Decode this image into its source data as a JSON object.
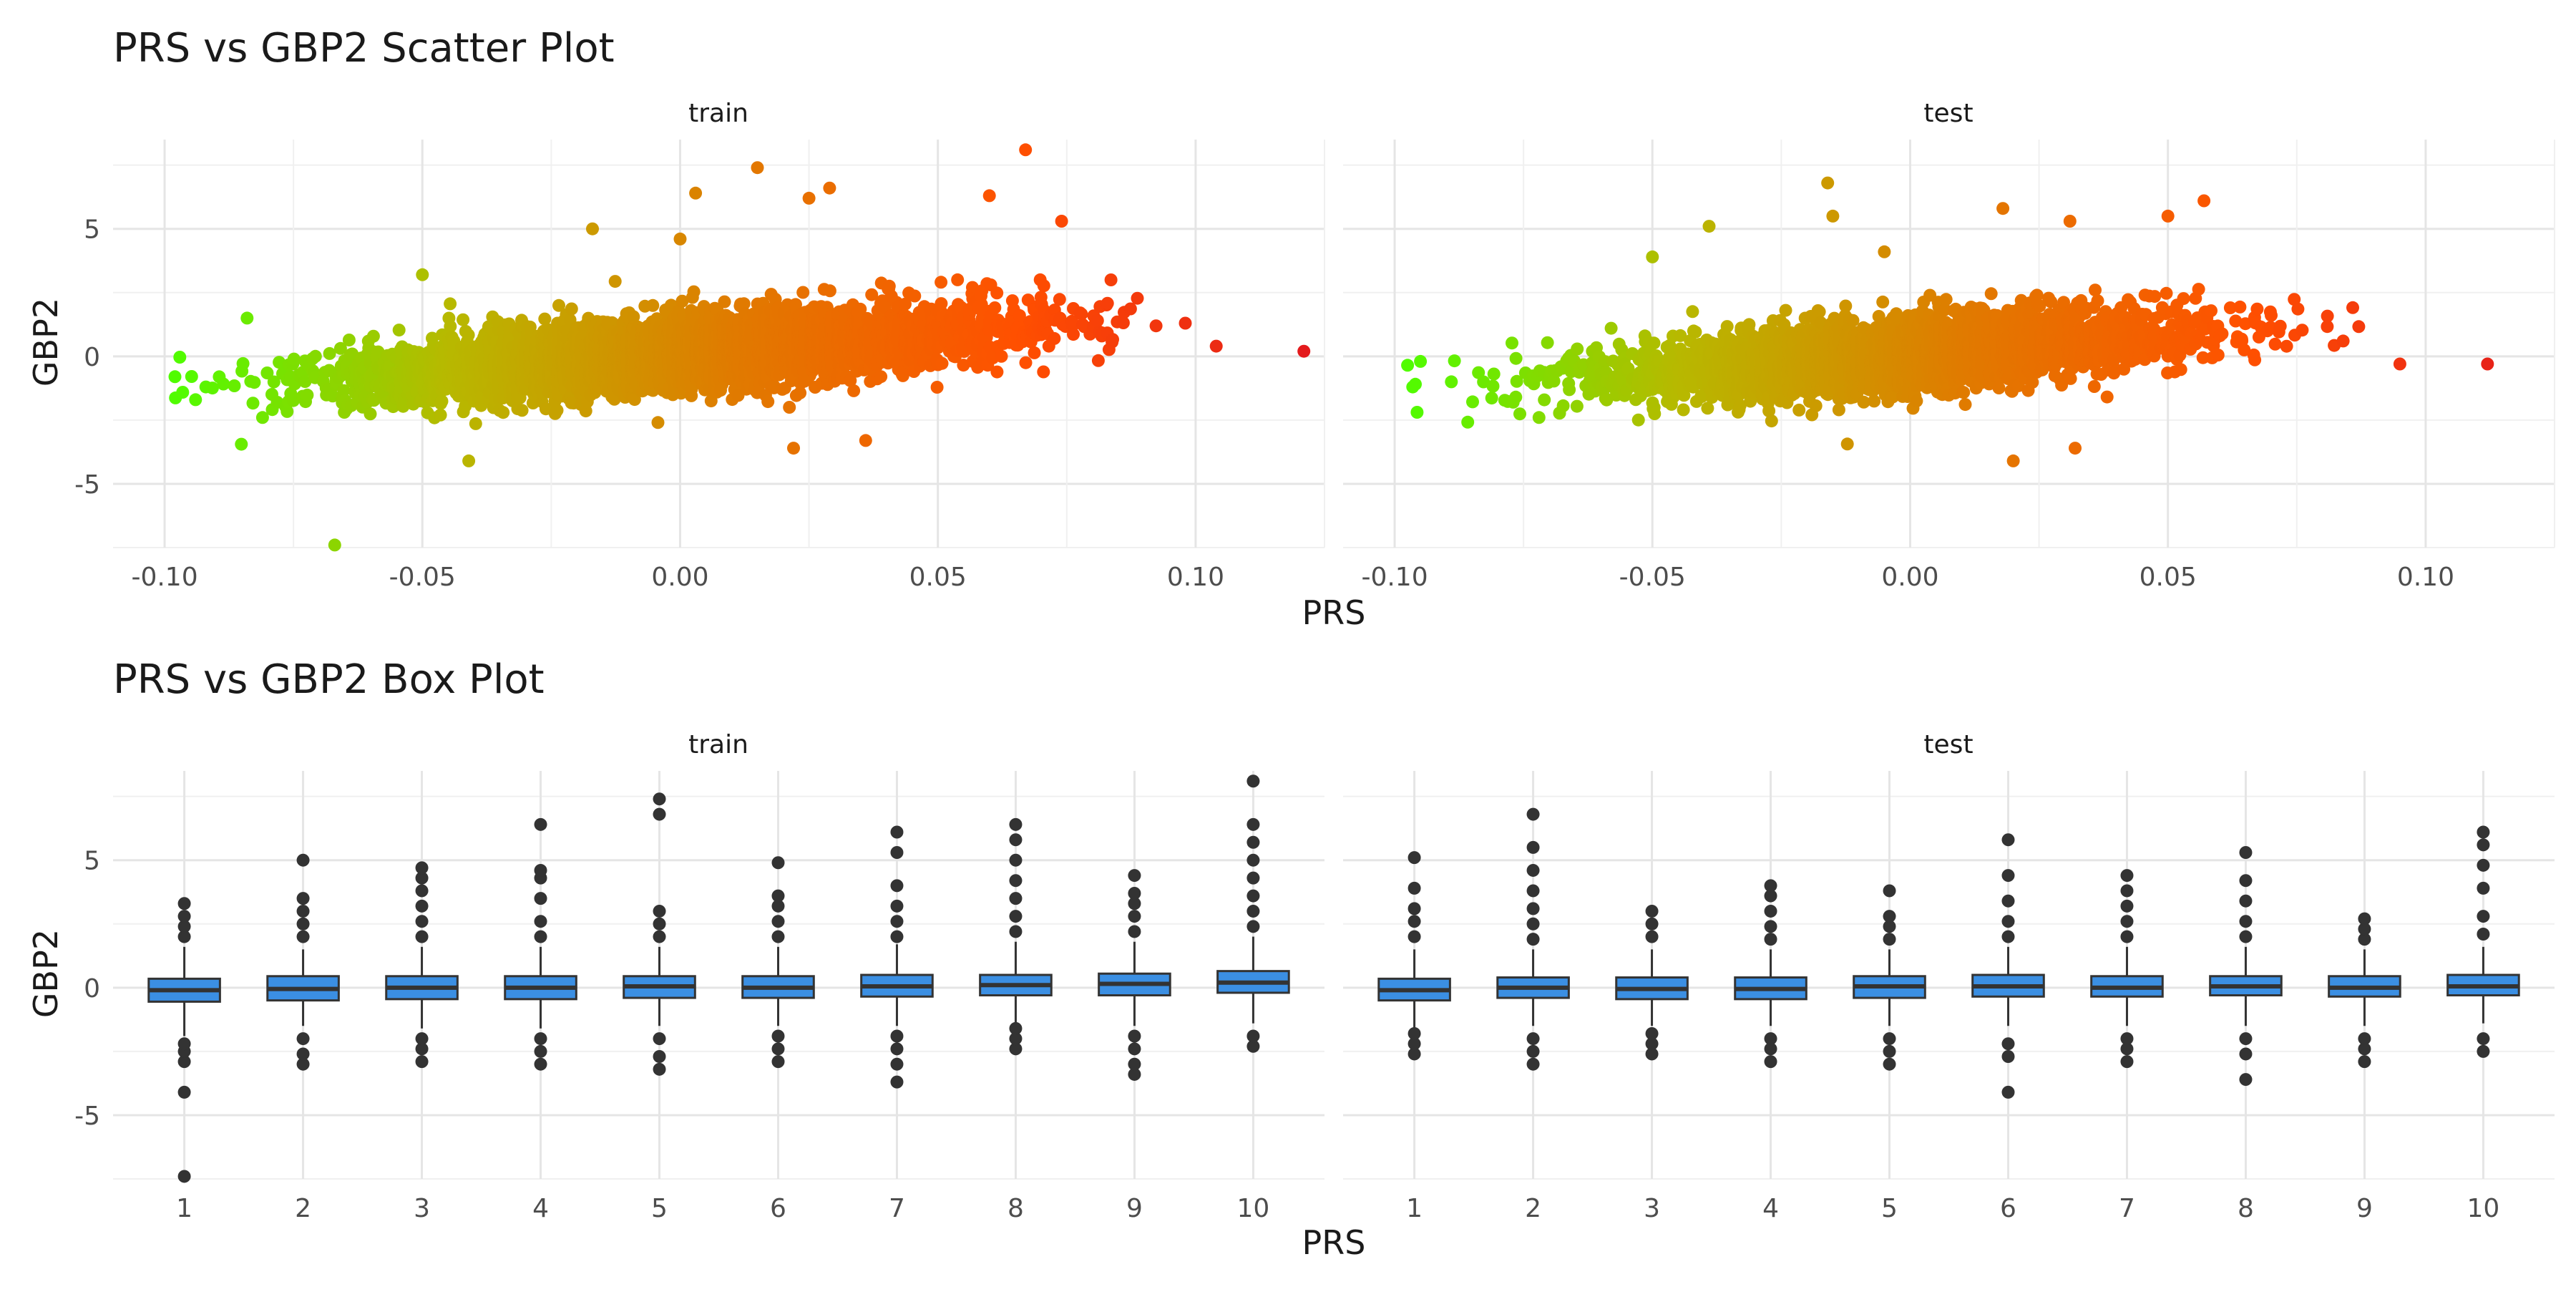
{
  "chart_data": [
    {
      "type": "scatter",
      "title": "PRS vs GBP2 Scatter Plot",
      "xlabel": "PRS",
      "ylabel": "GBP2",
      "facets": [
        "train",
        "test"
      ],
      "xlim": [
        -0.11,
        0.125
      ],
      "ylim": [
        -7.5,
        8.5
      ],
      "x_ticks": [
        "-0.10",
        "-0.05",
        "0.00",
        "0.05",
        "0.10"
      ],
      "x_tick_values": [
        -0.1,
        -0.05,
        0.0,
        0.05,
        0.1
      ],
      "y_ticks": [
        "-5",
        "0",
        "5"
      ],
      "y_tick_values": [
        -5,
        0,
        5
      ],
      "grid": true,
      "color_gradient": [
        "#4cff00",
        "#b7b900",
        "#e07b00",
        "#ff5000",
        "#e41a1c"
      ],
      "color_encodes": "PRS",
      "notable_points": {
        "train": [
          {
            "x": -0.098,
            "y": -0.8
          },
          {
            "x": -0.094,
            "y": -1.7
          },
          {
            "x": -0.084,
            "y": 1.5
          },
          {
            "x": -0.081,
            "y": -2.4
          },
          {
            "x": -0.067,
            "y": -7.4
          },
          {
            "x": -0.05,
            "y": 3.2
          },
          {
            "x": -0.041,
            "y": -4.1
          },
          {
            "x": -0.017,
            "y": 5.0
          },
          {
            "x": 0.0,
            "y": 4.6
          },
          {
            "x": 0.003,
            "y": 6.4
          },
          {
            "x": 0.015,
            "y": 7.4
          },
          {
            "x": 0.025,
            "y": 6.2
          },
          {
            "x": 0.029,
            "y": 6.6
          },
          {
            "x": 0.022,
            "y": -3.6
          },
          {
            "x": 0.036,
            "y": -3.3
          },
          {
            "x": 0.06,
            "y": 6.3
          },
          {
            "x": 0.067,
            "y": 8.1
          },
          {
            "x": 0.074,
            "y": 5.3
          },
          {
            "x": 0.098,
            "y": 1.3
          },
          {
            "x": 0.104,
            "y": 0.4
          },
          {
            "x": 0.121,
            "y": 0.2
          }
        ],
        "test": [
          {
            "x": -0.095,
            "y": -0.2
          },
          {
            "x": -0.089,
            "y": -1.0
          },
          {
            "x": -0.077,
            "y": -1.8
          },
          {
            "x": -0.072,
            "y": -2.4
          },
          {
            "x": -0.05,
            "y": 3.9
          },
          {
            "x": -0.039,
            "y": 5.1
          },
          {
            "x": -0.016,
            "y": 6.8
          },
          {
            "x": -0.015,
            "y": 5.5
          },
          {
            "x": -0.005,
            "y": 4.1
          },
          {
            "x": 0.018,
            "y": 5.8
          },
          {
            "x": 0.02,
            "y": -4.1
          },
          {
            "x": 0.031,
            "y": 5.3
          },
          {
            "x": 0.032,
            "y": -3.6
          },
          {
            "x": 0.05,
            "y": 5.5
          },
          {
            "x": 0.057,
            "y": 6.1
          },
          {
            "x": 0.084,
            "y": 0.6
          },
          {
            "x": 0.095,
            "y": -0.3
          },
          {
            "x": 0.112,
            "y": -0.3
          }
        ]
      }
    },
    {
      "type": "box",
      "title": "PRS vs GBP2 Box Plot",
      "xlabel": "PRS",
      "ylabel": "GBP2",
      "facets": [
        "train",
        "test"
      ],
      "categories": [
        "1",
        "2",
        "3",
        "4",
        "5",
        "6",
        "7",
        "8",
        "9",
        "10"
      ],
      "ylim": [
        -7.5,
        8.5
      ],
      "y_ticks": [
        "-5",
        "0",
        "5"
      ],
      "y_tick_values": [
        -5,
        0,
        5
      ],
      "grid": true,
      "box_fill": "#3b8fe3",
      "box_stroke": "#333333",
      "series": [
        {
          "facet": "train",
          "boxes": [
            {
              "q1": -0.55,
              "median": -0.1,
              "q3": 0.35,
              "whisker_low": -1.9,
              "whisker_high": 1.6,
              "outliers": [
                -7.4,
                -4.1,
                -2.9,
                -2.5,
                -2.2,
                2.0,
                2.4,
                2.8,
                3.3
              ]
            },
            {
              "q1": -0.5,
              "median": -0.05,
              "q3": 0.45,
              "whisker_low": -1.5,
              "whisker_high": 1.5,
              "outliers": [
                -3.0,
                -2.6,
                -2.0,
                2.0,
                2.5,
                3.0,
                3.5,
                5.0
              ]
            },
            {
              "q1": -0.45,
              "median": 0.0,
              "q3": 0.45,
              "whisker_low": -1.6,
              "whisker_high": 1.6,
              "outliers": [
                -2.9,
                -2.4,
                -2.0,
                2.0,
                2.6,
                3.2,
                3.8,
                4.3,
                4.7
              ]
            },
            {
              "q1": -0.45,
              "median": 0.0,
              "q3": 0.45,
              "whisker_low": -1.6,
              "whisker_high": 1.6,
              "outliers": [
                -3.0,
                -2.5,
                -2.0,
                2.0,
                2.6,
                3.5,
                4.3,
                4.6,
                6.4
              ]
            },
            {
              "q1": -0.4,
              "median": 0.05,
              "q3": 0.45,
              "whisker_low": -1.5,
              "whisker_high": 1.6,
              "outliers": [
                -3.2,
                -2.7,
                -2.0,
                2.0,
                2.5,
                3.0,
                6.8,
                7.4
              ]
            },
            {
              "q1": -0.4,
              "median": 0.0,
              "q3": 0.45,
              "whisker_low": -1.5,
              "whisker_high": 1.6,
              "outliers": [
                -2.9,
                -2.4,
                -1.9,
                2.0,
                2.6,
                3.2,
                3.6,
                4.9
              ]
            },
            {
              "q1": -0.35,
              "median": 0.05,
              "q3": 0.5,
              "whisker_low": -1.5,
              "whisker_high": 1.7,
              "outliers": [
                -3.7,
                -3.0,
                -2.4,
                -1.9,
                2.0,
                2.6,
                3.2,
                4.0,
                5.3,
                6.1
              ]
            },
            {
              "q1": -0.3,
              "median": 0.1,
              "q3": 0.5,
              "whisker_low": -1.4,
              "whisker_high": 1.8,
              "outliers": [
                -2.4,
                -2.0,
                -1.6,
                2.2,
                2.8,
                3.5,
                4.2,
                5.0,
                5.8,
                6.4
              ]
            },
            {
              "q1": -0.3,
              "median": 0.15,
              "q3": 0.55,
              "whisker_low": -1.5,
              "whisker_high": 1.8,
              "outliers": [
                -3.4,
                -3.0,
                -2.4,
                -1.9,
                2.2,
                2.8,
                3.3,
                3.7,
                4.4
              ]
            },
            {
              "q1": -0.2,
              "median": 0.2,
              "q3": 0.65,
              "whisker_low": -1.4,
              "whisker_high": 2.0,
              "outliers": [
                -2.3,
                -1.9,
                2.4,
                3.0,
                3.6,
                4.3,
                5.0,
                5.7,
                6.4,
                8.1
              ]
            }
          ]
        },
        {
          "facet": "test",
          "boxes": [
            {
              "q1": -0.5,
              "median": -0.1,
              "q3": 0.35,
              "whisker_low": -1.6,
              "whisker_high": 1.5,
              "outliers": [
                -2.6,
                -2.2,
                -1.8,
                2.0,
                2.6,
                3.1,
                3.9,
                5.1
              ]
            },
            {
              "q1": -0.4,
              "median": 0.0,
              "q3": 0.4,
              "whisker_low": -1.5,
              "whisker_high": 1.5,
              "outliers": [
                -3.0,
                -2.5,
                -2.0,
                1.9,
                2.5,
                3.1,
                3.8,
                4.6,
                5.5,
                6.8
              ]
            },
            {
              "q1": -0.45,
              "median": -0.05,
              "q3": 0.4,
              "whisker_low": -1.5,
              "whisker_high": 1.5,
              "outliers": [
                -2.6,
                -2.2,
                -1.8,
                2.0,
                2.5,
                3.0
              ]
            },
            {
              "q1": -0.45,
              "median": -0.05,
              "q3": 0.4,
              "whisker_low": -1.5,
              "whisker_high": 1.5,
              "outliers": [
                -2.9,
                -2.4,
                -2.0,
                1.9,
                2.4,
                3.0,
                3.6,
                4.0
              ]
            },
            {
              "q1": -0.4,
              "median": 0.05,
              "q3": 0.45,
              "whisker_low": -1.5,
              "whisker_high": 1.5,
              "outliers": [
                -3.0,
                -2.5,
                -2.0,
                1.9,
                2.4,
                2.8,
                3.8
              ]
            },
            {
              "q1": -0.35,
              "median": 0.05,
              "q3": 0.5,
              "whisker_low": -1.5,
              "whisker_high": 1.6,
              "outliers": [
                -4.1,
                -2.7,
                -2.2,
                2.0,
                2.6,
                3.4,
                4.4,
                5.8
              ]
            },
            {
              "q1": -0.35,
              "median": 0.0,
              "q3": 0.45,
              "whisker_low": -1.5,
              "whisker_high": 1.6,
              "outliers": [
                -2.9,
                -2.4,
                -2.0,
                2.0,
                2.6,
                3.2,
                3.8,
                4.4
              ]
            },
            {
              "q1": -0.3,
              "median": 0.05,
              "q3": 0.45,
              "whisker_low": -1.5,
              "whisker_high": 1.6,
              "outliers": [
                -3.6,
                -2.6,
                -2.0,
                2.0,
                2.6,
                3.4,
                4.2,
                5.3
              ]
            },
            {
              "q1": -0.35,
              "median": 0.0,
              "q3": 0.45,
              "whisker_low": -1.5,
              "whisker_high": 1.5,
              "outliers": [
                -2.9,
                -2.4,
                -2.0,
                1.9,
                2.3,
                2.7
              ]
            },
            {
              "q1": -0.3,
              "median": 0.05,
              "q3": 0.5,
              "whisker_low": -1.4,
              "whisker_high": 1.6,
              "outliers": [
                -2.5,
                -2.0,
                2.1,
                2.8,
                3.9,
                4.8,
                5.6,
                6.1
              ]
            }
          ]
        }
      ]
    }
  ]
}
